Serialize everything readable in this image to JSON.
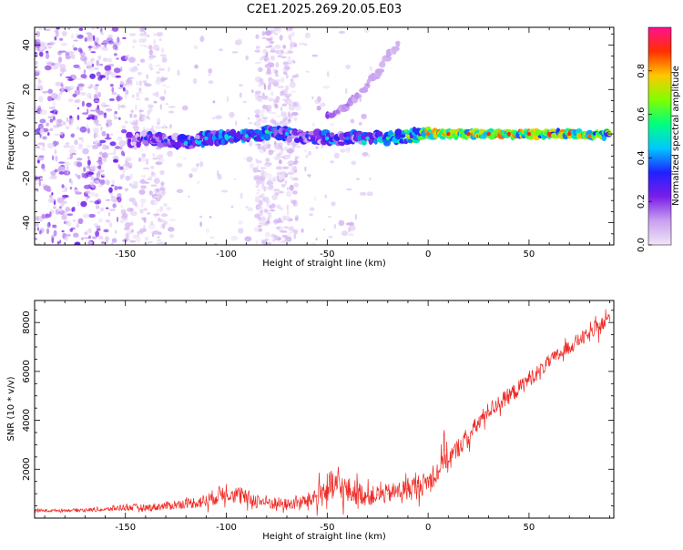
{
  "title": "C2E1.2025.269.20.05.E03",
  "colors": {
    "snr_line": "#ee2a24",
    "spectrum_low": "#e6d2f5",
    "spectrum_mid": "#7a1ee8",
    "colorbar_stops": [
      "#f0e6f8",
      "#c8a0f0",
      "#7a1ee8",
      "#2020ff",
      "#00c8ff",
      "#00ff80",
      "#80ff00",
      "#ffc800",
      "#ff3000",
      "#ff1090"
    ]
  },
  "chart_data": [
    {
      "type": "heatmap",
      "xlabel": "Height of straight line (km)",
      "ylabel": "Frequency (Hz)",
      "xlim": [
        -195,
        92
      ],
      "ylim": [
        -50,
        48
      ],
      "xticks": [
        -150,
        -100,
        -50,
        0,
        50
      ],
      "yticks": [
        -40,
        -20,
        0,
        20,
        40
      ],
      "grid": false,
      "colorbar": {
        "label": "Normalized spectral amplitude",
        "range": [
          0,
          1
        ],
        "ticks": [
          "0.0",
          "0.2",
          "0.4",
          "0.6",
          "0.8"
        ]
      },
      "series": [
        {
          "kind": "main-band",
          "x": [
            -148,
            -140,
            -130,
            -120,
            -110,
            -100,
            -90,
            -80,
            -70,
            -60,
            -50,
            -40,
            -30,
            -20,
            -10,
            0,
            10,
            20,
            30,
            40,
            50,
            60,
            70,
            80,
            90
          ],
          "y": [
            -3,
            -2,
            -3,
            -4,
            -2,
            -1,
            -1,
            1,
            0,
            -1,
            -2,
            -2,
            -2,
            -2,
            -1,
            0,
            0,
            0,
            0,
            0,
            0,
            0,
            0,
            -1,
            0
          ],
          "amplitude": [
            0.25,
            0.35,
            0.35,
            0.45,
            0.45,
            0.5,
            0.5,
            0.55,
            0.45,
            0.35,
            0.45,
            0.4,
            0.5,
            0.55,
            0.7,
            0.85,
            0.9,
            0.9,
            0.9,
            0.9,
            0.9,
            0.9,
            0.9,
            0.85,
            0.7
          ]
        },
        {
          "kind": "rising-branch",
          "x": [
            -50,
            -45,
            -40,
            -35,
            -30,
            -25,
            -20,
            -15
          ],
          "y": [
            8,
            10,
            13,
            17,
            22,
            28,
            35,
            40
          ],
          "amplitude": [
            0.2,
            0.15,
            0.15,
            0.12,
            0.12,
            0.1,
            0.1,
            0.08
          ]
        }
      ]
    },
    {
      "type": "line",
      "xlabel": "Height of straight line (km)",
      "ylabel": "SNR (10 * v/v)",
      "xlim": [
        -195,
        92
      ],
      "ylim": [
        0,
        8900
      ],
      "xticks": [
        -150,
        -100,
        -50,
        0,
        50
      ],
      "yticks": [
        2000,
        4000,
        6000,
        8000
      ],
      "grid": false,
      "series": [
        {
          "name": "",
          "x": [
            -195,
            -180,
            -160,
            -150,
            -140,
            -130,
            -120,
            -110,
            -100,
            -90,
            -80,
            -70,
            -60,
            -55,
            -50,
            -45,
            -40,
            -35,
            -30,
            -25,
            -20,
            -15,
            -10,
            -5,
            0,
            5,
            8,
            10,
            15,
            20,
            25,
            30,
            35,
            40,
            45,
            50,
            55,
            60,
            65,
            70,
            75,
            80,
            85,
            90
          ],
          "y": [
            300,
            320,
            350,
            450,
            420,
            500,
            600,
            700,
            1100,
            800,
            650,
            550,
            700,
            900,
            1200,
            1300,
            1100,
            1050,
            900,
            950,
            1000,
            1100,
            1200,
            1300,
            1500,
            1900,
            2800,
            2300,
            2900,
            3300,
            3900,
            4400,
            4700,
            5000,
            5300,
            5700,
            6000,
            6400,
            6700,
            7000,
            7300,
            7500,
            7800,
            8200
          ],
          "noise": [
            60,
            60,
            80,
            150,
            150,
            180,
            200,
            300,
            400,
            350,
            300,
            250,
            300,
            500,
            700,
            700,
            600,
            500,
            400,
            400,
            400,
            400,
            500,
            500,
            400,
            500,
            900,
            500,
            400,
            400,
            400,
            350,
            350,
            350,
            350,
            350,
            300,
            300,
            300,
            300,
            300,
            300,
            350,
            350
          ]
        }
      ]
    }
  ]
}
